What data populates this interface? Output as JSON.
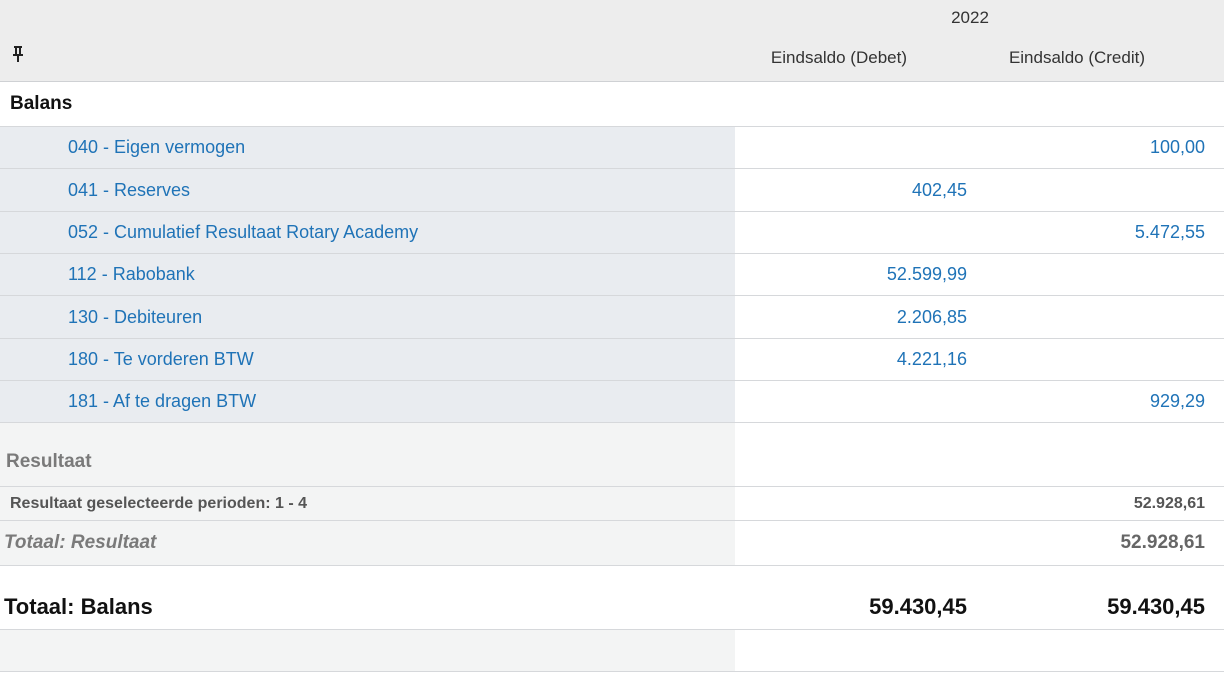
{
  "header": {
    "year": "2022",
    "col_debet": "Eindsaldo (Debet)",
    "col_credit": "Eindsaldo (Credit)",
    "pin_icon": "pin-icon"
  },
  "balans": {
    "title": "Balans",
    "accounts": [
      {
        "label": "040 - Eigen vermogen",
        "debet": "",
        "credit": "100,00"
      },
      {
        "label": "041 - Reserves",
        "debet": "402,45",
        "credit": ""
      },
      {
        "label": "052 - Cumulatief Resultaat Rotary Academy",
        "debet": "",
        "credit": "5.472,55"
      },
      {
        "label": "112 - Rabobank",
        "debet": "52.599,99",
        "credit": ""
      },
      {
        "label": "130 - Debiteuren",
        "debet": "2.206,85",
        "credit": ""
      },
      {
        "label": "180 - Te vorderen BTW",
        "debet": "4.221,16",
        "credit": ""
      },
      {
        "label": "181 - Af te dragen BTW",
        "debet": "",
        "credit": "929,29"
      }
    ]
  },
  "resultaat": {
    "title": "Resultaat",
    "period_label": "Resultaat geselecteerde perioden: 1 - 4",
    "period_credit": "52.928,61",
    "total_label": "Totaal: Resultaat",
    "total_credit": "52.928,61"
  },
  "totaal_balans": {
    "label": "Totaal: Balans",
    "debet": "59.430,45",
    "credit": "59.430,45"
  },
  "colors": {
    "link": "#1f73b7",
    "left_shade": "#e9ecf0",
    "header_bg": "#ededed"
  }
}
